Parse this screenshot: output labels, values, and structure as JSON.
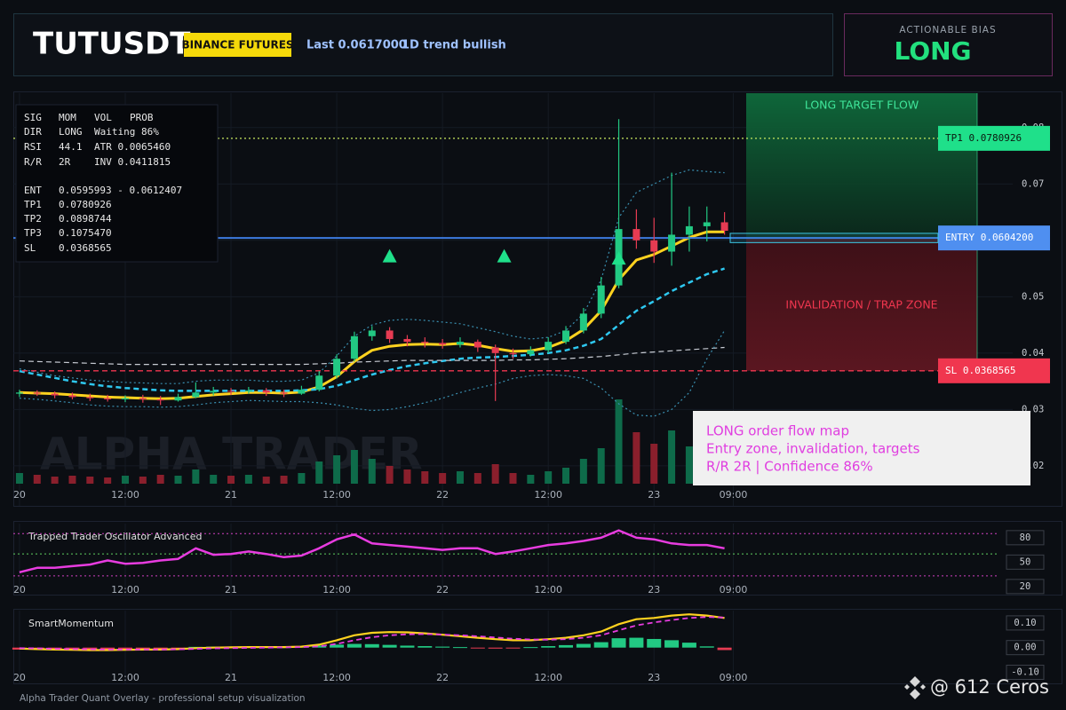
{
  "header": {
    "symbol": "TUTUSDT",
    "exchange": "BINANCE FUTURES",
    "last": "Last 0.0617000",
    "trend": "1D trend bullish",
    "bias_label": "ACTIONABLE BIAS",
    "bias": "LONG"
  },
  "footer": "Alpha Trader Quant Overlay - professional setup visualization",
  "watermark": "ALPHA TRADER",
  "credit": "@ 612 Ceros",
  "chart_data": [
    {
      "type": "candlestick",
      "xlim": [
        -0.7,
        112.7
      ],
      "ylim": [
        0.0129,
        0.0861
      ],
      "yticks": [
        0.02,
        0.03,
        0.04,
        0.05,
        0.06,
        0.07,
        0.08
      ],
      "xticks": [
        {
          "value": 0,
          "label": "20"
        },
        {
          "value": 12,
          "label": "12:00"
        },
        {
          "value": 24,
          "label": "21"
        },
        {
          "value": 36,
          "label": "12:00"
        },
        {
          "value": 48,
          "label": "22"
        },
        {
          "value": 60,
          "label": "12:00"
        },
        {
          "value": 72,
          "label": "23"
        },
        {
          "value": 81,
          "label": "09:00"
        }
      ],
      "grid": true,
      "up_color": "#22c983",
      "down_color": "#e63b52",
      "x": [
        0,
        2,
        4,
        6,
        8,
        10,
        12,
        14,
        16,
        18,
        20,
        22,
        24,
        26,
        28,
        30,
        32,
        34,
        36,
        38,
        40,
        42,
        44,
        46,
        48,
        50,
        52,
        54,
        56,
        58,
        60,
        62,
        64,
        66,
        68,
        70,
        72,
        74,
        76,
        78,
        80
      ],
      "candles": [
        [
          0.0328,
          0.0335,
          0.0322,
          0.033
        ],
        [
          0.033,
          0.0334,
          0.0324,
          0.0328
        ],
        [
          0.0328,
          0.0332,
          0.032,
          0.0325
        ],
        [
          0.0325,
          0.033,
          0.0318,
          0.0322
        ],
        [
          0.0322,
          0.0328,
          0.0315,
          0.032
        ],
        [
          0.032,
          0.0326,
          0.0314,
          0.0318
        ],
        [
          0.0318,
          0.0325,
          0.0313,
          0.032
        ],
        [
          0.032,
          0.0326,
          0.0312,
          0.0318
        ],
        [
          0.0318,
          0.0324,
          0.0308,
          0.0316
        ],
        [
          0.0316,
          0.0328,
          0.0314,
          0.0322
        ],
        [
          0.0322,
          0.0348,
          0.032,
          0.033
        ],
        [
          0.033,
          0.034,
          0.0325,
          0.0333
        ],
        [
          0.0333,
          0.0338,
          0.0326,
          0.0332
        ],
        [
          0.0332,
          0.034,
          0.0328,
          0.0334
        ],
        [
          0.0334,
          0.0338,
          0.0324,
          0.033
        ],
        [
          0.033,
          0.0335,
          0.0322,
          0.0328
        ],
        [
          0.0328,
          0.0342,
          0.0326,
          0.0335
        ],
        [
          0.0335,
          0.0368,
          0.0332,
          0.036
        ],
        [
          0.036,
          0.0398,
          0.0355,
          0.039
        ],
        [
          0.039,
          0.0438,
          0.0385,
          0.043
        ],
        [
          0.043,
          0.0448,
          0.0422,
          0.044
        ],
        [
          0.044,
          0.0446,
          0.0418,
          0.0425
        ],
        [
          0.0425,
          0.0432,
          0.0412,
          0.042
        ],
        [
          0.042,
          0.0428,
          0.041,
          0.0418
        ],
        [
          0.0418,
          0.0425,
          0.0408,
          0.0415
        ],
        [
          0.0415,
          0.0428,
          0.041,
          0.042
        ],
        [
          0.042,
          0.0424,
          0.0402,
          0.041
        ],
        [
          0.041,
          0.0415,
          0.0315,
          0.04
        ],
        [
          0.04,
          0.0408,
          0.039,
          0.0398
        ],
        [
          0.0398,
          0.0412,
          0.0394,
          0.0405
        ],
        [
          0.0405,
          0.0428,
          0.04,
          0.042
        ],
        [
          0.042,
          0.0448,
          0.0416,
          0.044
        ],
        [
          0.044,
          0.048,
          0.0435,
          0.047
        ],
        [
          0.047,
          0.0535,
          0.0462,
          0.052
        ],
        [
          0.052,
          0.0815,
          0.0515,
          0.062
        ],
        [
          0.062,
          0.0655,
          0.0585,
          0.06
        ],
        [
          0.06,
          0.064,
          0.056,
          0.058
        ],
        [
          0.058,
          0.072,
          0.0555,
          0.061
        ],
        [
          0.061,
          0.066,
          0.058,
          0.0625
        ],
        [
          0.0625,
          0.066,
          0.0598,
          0.0632
        ],
        [
          0.0632,
          0.065,
          0.061,
          0.0617
        ]
      ],
      "volume": [
        12,
        10,
        8,
        9,
        8,
        7,
        9,
        8,
        10,
        9,
        16,
        10,
        9,
        10,
        8,
        9,
        12,
        25,
        32,
        38,
        28,
        20,
        16,
        14,
        12,
        14,
        12,
        22,
        12,
        10,
        14,
        18,
        28,
        40,
        95,
        58,
        45,
        60,
        42,
        38,
        30
      ],
      "lines": [
        {
          "color": "#ffd21f",
          "style": "solid",
          "width": 3,
          "values": [
            0.033,
            0.0329,
            0.0328,
            0.0326,
            0.0324,
            0.0322,
            0.0321,
            0.032,
            0.0319,
            0.032,
            0.0323,
            0.0326,
            0.0328,
            0.033,
            0.033,
            0.0329,
            0.0331,
            0.034,
            0.0358,
            0.0385,
            0.0405,
            0.0412,
            0.0415,
            0.0416,
            0.0415,
            0.0417,
            0.0414,
            0.0408,
            0.0403,
            0.0404,
            0.041,
            0.0422,
            0.0442,
            0.0475,
            0.053,
            0.0565,
            0.0575,
            0.059,
            0.0605,
            0.0615,
            0.0615
          ]
        },
        {
          "color": "#2ec8f0",
          "style": "dashed",
          "width": 2.5,
          "values": [
            0.0368,
            0.0362,
            0.0356,
            0.035,
            0.0345,
            0.0341,
            0.0338,
            0.0336,
            0.0334,
            0.0333,
            0.0333,
            0.0333,
            0.0333,
            0.0333,
            0.0333,
            0.0333,
            0.0334,
            0.0336,
            0.0342,
            0.0352,
            0.0362,
            0.037,
            0.0377,
            0.0382,
            0.0386,
            0.039,
            0.0392,
            0.0393,
            0.0395,
            0.0397,
            0.04,
            0.0405,
            0.0413,
            0.0425,
            0.045,
            0.0475,
            0.0492,
            0.051,
            0.0525,
            0.054,
            0.055
          ]
        },
        {
          "color": "#c8ccd4",
          "style": "dashed",
          "width": 1.2,
          "values": [
            0.0386,
            0.0385,
            0.0384,
            0.0383,
            0.0382,
            0.0381,
            0.038,
            0.038,
            0.038,
            0.038,
            0.038,
            0.038,
            0.038,
            0.038,
            0.038,
            0.038,
            0.038,
            0.0381,
            0.0382,
            0.0384,
            0.0385,
            0.0386,
            0.0387,
            0.0387,
            0.0387,
            0.0387,
            0.0387,
            0.0387,
            0.0388,
            0.0388,
            0.0389,
            0.039,
            0.0392,
            0.0394,
            0.0397,
            0.04,
            0.0402,
            0.0404,
            0.0406,
            0.0408,
            0.041
          ]
        },
        {
          "color": "#3a8fb0",
          "style": "dotted",
          "width": 1.2,
          "values": [
            0.0372,
            0.0366,
            0.036,
            0.0356,
            0.0352,
            0.035,
            0.0348,
            0.0347,
            0.0346,
            0.0346,
            0.035,
            0.0352,
            0.0352,
            0.0352,
            0.035,
            0.035,
            0.0352,
            0.0365,
            0.0395,
            0.043,
            0.045,
            0.0458,
            0.046,
            0.0458,
            0.0455,
            0.0452,
            0.0445,
            0.0438,
            0.043,
            0.0425,
            0.0428,
            0.044,
            0.047,
            0.053,
            0.064,
            0.0685,
            0.07,
            0.0715,
            0.0725,
            0.0722,
            0.072
          ]
        },
        {
          "color": "#3a8fb0",
          "style": "dotted",
          "width": 1.2,
          "values": [
            0.032,
            0.0318,
            0.0315,
            0.0312,
            0.0308,
            0.0306,
            0.0305,
            0.0305,
            0.0304,
            0.0305,
            0.0308,
            0.0312,
            0.0314,
            0.0316,
            0.0315,
            0.0314,
            0.0314,
            0.0312,
            0.0308,
            0.0302,
            0.0298,
            0.03,
            0.0305,
            0.0312,
            0.032,
            0.033,
            0.0338,
            0.0345,
            0.0355,
            0.036,
            0.0362,
            0.036,
            0.0355,
            0.0338,
            0.031,
            0.029,
            0.0288,
            0.03,
            0.033,
            0.039,
            0.044
          ]
        }
      ],
      "signals": {
        "x": [
          42,
          55,
          68
        ],
        "y": [
          0.0572,
          0.0572,
          0.0568
        ],
        "color": "#1fe08a"
      },
      "levels": [
        {
          "value": 0.0780926,
          "label": "TP1 0.0780926",
          "color": "#c8e860",
          "tag_color": "#1fe08a",
          "style": "dotted"
        },
        {
          "value": 0.06042,
          "label": "ENTRY 0.0604200",
          "color": "#3d7be0",
          "tag_color": "#4f8ff0",
          "style": "solid"
        },
        {
          "value": 0.0368565,
          "label": "SL 0.0368565",
          "color": "#f0364f",
          "tag_color": "#f0364f",
          "style": "dashed"
        }
      ],
      "entry_zone": [
        0.0595993,
        0.0612407
      ],
      "zone_labels": [
        "LONG TARGET FLOW",
        "INVALIDATION / TRAP ZONE"
      ],
      "info_table": [
        [
          "SIG",
          "MOM",
          "VOL",
          "PROB"
        ],
        [
          "DIR",
          "LONG",
          "Waiting 86%"
        ],
        [
          "RSI",
          "44.1",
          "ATR 0.0065460"
        ],
        [
          "R/R",
          "2R",
          "INV 0.0411815"
        ],
        [
          "ENT",
          "0.0595993 - 0.0612407"
        ],
        [
          "TP1",
          "0.0780926"
        ],
        [
          "TP2",
          "0.0898744"
        ],
        [
          "TP3",
          "0.1075470"
        ],
        [
          "SL",
          "0.0368565"
        ]
      ],
      "note_lines": [
        "LONG order flow map",
        "Entry zone, invalidation, targets",
        "R/R 2R | Confidence 86%"
      ]
    },
    {
      "type": "line",
      "title": "Trapped Trader Oscillator Advanced",
      "xlim": [
        -0.7,
        112.7
      ],
      "ylim": [
        10,
        97.3
      ],
      "yticks": [
        80,
        50,
        20
      ],
      "xticks": [
        {
          "value": 0,
          "label": "20"
        },
        {
          "value": 12,
          "label": "12:00"
        },
        {
          "value": 24,
          "label": "21"
        },
        {
          "value": 36,
          "label": "12:00"
        },
        {
          "value": 48,
          "label": "22"
        },
        {
          "value": 60,
          "label": "12:00"
        },
        {
          "value": 72,
          "label": "23"
        },
        {
          "value": 81,
          "label": "09:00"
        }
      ],
      "levels": [
        {
          "value": 85,
          "color": "#d040c0"
        },
        {
          "value": 60,
          "color": "#60d060"
        },
        {
          "value": 33,
          "color": "#d040c0"
        }
      ],
      "x": [
        0,
        2,
        4,
        6,
        8,
        10,
        12,
        14,
        16,
        18,
        20,
        22,
        24,
        26,
        28,
        30,
        32,
        34,
        36,
        38,
        40,
        42,
        44,
        46,
        48,
        50,
        52,
        54,
        56,
        58,
        60,
        62,
        64,
        66,
        68,
        70,
        72,
        74,
        76,
        78,
        80
      ],
      "color": "#e83ce0",
      "values": [
        37.5,
        43,
        43,
        45,
        47,
        52,
        48,
        49,
        52,
        54,
        67,
        59,
        60,
        63,
        60,
        56,
        58,
        67,
        78,
        84,
        73,
        71,
        69,
        67,
        65,
        67,
        67,
        60,
        63,
        67,
        71,
        73,
        76,
        80,
        89,
        80,
        78,
        73,
        71,
        71,
        67
      ]
    },
    {
      "type": "bar",
      "title": "SmartMomentum",
      "xlim": [
        -0.7,
        112.7
      ],
      "ylim": [
        -0.145,
        0.15
      ],
      "yticks": [
        {
          "value": 0.1,
          "label": "0.10"
        },
        {
          "value": 0,
          "label": "0.00"
        },
        {
          "value": -0.1,
          "label": "-0.10"
        }
      ],
      "xticks": [
        {
          "value": 0,
          "label": "20"
        },
        {
          "value": 12,
          "label": "12:00"
        },
        {
          "value": 24,
          "label": "21"
        },
        {
          "value": 36,
          "label": "12:00"
        },
        {
          "value": 48,
          "label": "22"
        },
        {
          "value": 60,
          "label": "12:00"
        },
        {
          "value": 72,
          "label": "23"
        },
        {
          "value": 81,
          "label": "09:00"
        }
      ],
      "x": [
        0,
        2,
        4,
        6,
        8,
        10,
        12,
        14,
        16,
        18,
        20,
        22,
        24,
        26,
        28,
        30,
        32,
        34,
        36,
        38,
        40,
        42,
        44,
        46,
        48,
        50,
        52,
        54,
        56,
        58,
        60,
        62,
        64,
        66,
        68,
        70,
        72,
        74,
        76,
        78,
        80
      ],
      "up_color": "#22c983",
      "down_color": "#e63b52",
      "values": [
        -0.008,
        -0.008,
        -0.009,
        -0.009,
        -0.008,
        -0.008,
        -0.007,
        -0.006,
        -0.006,
        -0.004,
        0.003,
        0.004,
        0.004,
        0.004,
        0.003,
        0.002,
        0.004,
        0.008,
        0.012,
        0.015,
        0.014,
        0.011,
        0.008,
        0.006,
        0.004,
        0.002,
        -0.002,
        -0.004,
        -0.003,
        0.002,
        0.006,
        0.01,
        0.015,
        0.022,
        0.038,
        0.04,
        0.035,
        0.03,
        0.02,
        0.005,
        -0.01
      ],
      "lines": [
        {
          "color": "#ffd21f",
          "style": "solid",
          "width": 2.2,
          "values": [
            -0.004,
            -0.006,
            -0.008,
            -0.009,
            -0.01,
            -0.01,
            -0.009,
            -0.008,
            -0.008,
            -0.006,
            -0.002,
            0.0,
            0.001,
            0.002,
            0.002,
            0.002,
            0.004,
            0.012,
            0.03,
            0.05,
            0.06,
            0.063,
            0.062,
            0.058,
            0.052,
            0.046,
            0.04,
            0.034,
            0.03,
            0.03,
            0.034,
            0.04,
            0.05,
            0.065,
            0.095,
            0.115,
            0.12,
            0.13,
            0.135,
            0.13,
            0.12
          ]
        },
        {
          "color": "#e83ce0",
          "style": "dashed",
          "width": 1.8,
          "values": [
            -0.002,
            -0.003,
            -0.005,
            -0.006,
            -0.007,
            -0.008,
            -0.008,
            -0.008,
            -0.008,
            -0.007,
            -0.005,
            -0.003,
            -0.002,
            -0.001,
            0.0,
            0.001,
            0.002,
            0.005,
            0.015,
            0.03,
            0.042,
            0.05,
            0.054,
            0.055,
            0.053,
            0.05,
            0.046,
            0.041,
            0.036,
            0.033,
            0.032,
            0.034,
            0.04,
            0.05,
            0.07,
            0.09,
            0.102,
            0.112,
            0.12,
            0.124,
            0.122
          ]
        }
      ]
    }
  ]
}
